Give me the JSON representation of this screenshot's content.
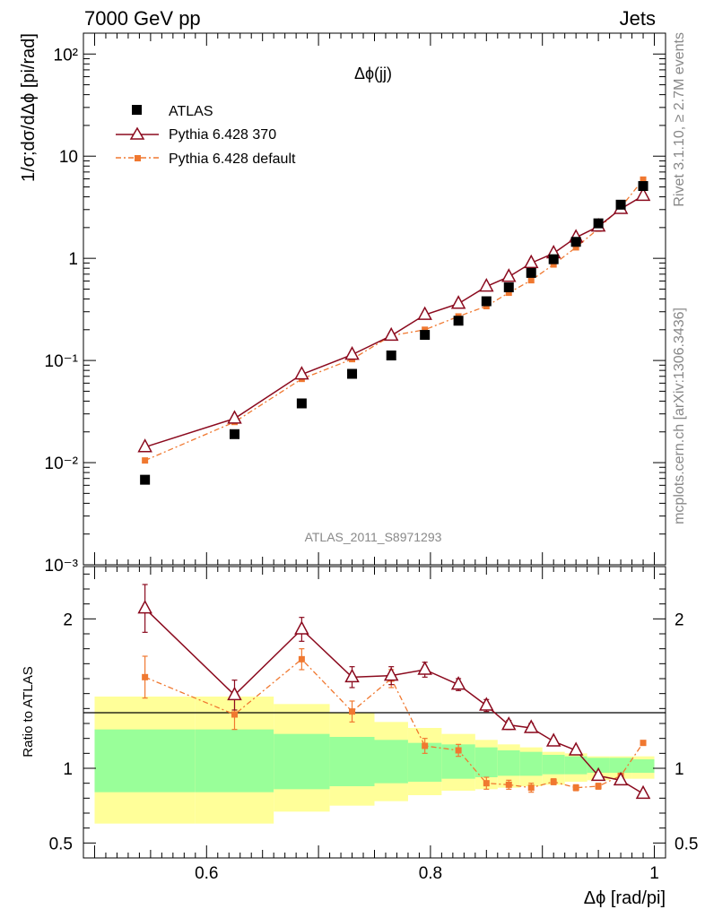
{
  "header": {
    "left": "7000 GeV pp",
    "right": "Jets"
  },
  "side_labels": {
    "rivet": "Rivet 3.1.10, ≥ 2.7M events",
    "mcplots": "mcplots.cern.ch [arXiv:1306.3436]"
  },
  "analysis_id": "ATLAS_2011_S8971293",
  "colors": {
    "atlas": "#000000",
    "pythia370": "#8b0a1e",
    "pythia_default": "#f07830",
    "band_inner": "#99ff99",
    "band_outer": "#ffff99"
  },
  "chart_data": [
    {
      "type": "scatter",
      "panel": "main",
      "title": "Δϕ(jj)",
      "ylabel": "1/σ;dσ/dΔϕ [pi/rad]",
      "xlabel": "",
      "yscale": "log",
      "ylim": [
        0.001,
        160
      ],
      "xlim": [
        0.49,
        1.01
      ],
      "ytick_labels": [
        "10⁻³",
        "10⁻²",
        "10⁻¹",
        "1",
        "10",
        "10²"
      ],
      "legend_position": "top-left",
      "series": [
        {
          "name": "ATLAS",
          "marker": "square",
          "x": [
            0.545,
            0.625,
            0.685,
            0.73,
            0.765,
            0.795,
            0.825,
            0.85,
            0.87,
            0.89,
            0.91,
            0.93,
            0.95,
            0.97,
            0.99
          ],
          "y": [
            0.0068,
            0.019,
            0.038,
            0.074,
            0.112,
            0.178,
            0.245,
            0.38,
            0.52,
            0.72,
            0.98,
            1.45,
            2.2,
            3.35,
            5.1
          ]
        },
        {
          "name": "Pythia 6.428 370",
          "marker": "triangle",
          "x": [
            0.545,
            0.625,
            0.685,
            0.73,
            0.765,
            0.795,
            0.825,
            0.85,
            0.87,
            0.89,
            0.91,
            0.93,
            0.95,
            0.97,
            0.99
          ],
          "y": [
            0.0142,
            0.027,
            0.073,
            0.114,
            0.175,
            0.28,
            0.36,
            0.53,
            0.66,
            0.9,
            1.12,
            1.6,
            2.05,
            3.05,
            4.1
          ]
        },
        {
          "name": "Pythia 6.428 default",
          "marker": "small-square",
          "x": [
            0.545,
            0.625,
            0.685,
            0.73,
            0.765,
            0.795,
            0.825,
            0.85,
            0.87,
            0.89,
            0.91,
            0.93,
            0.95,
            0.97,
            0.99
          ],
          "y": [
            0.0105,
            0.025,
            0.066,
            0.103,
            0.175,
            0.2,
            0.27,
            0.34,
            0.46,
            0.61,
            0.87,
            1.28,
            1.95,
            3.15,
            5.9
          ]
        }
      ]
    },
    {
      "type": "line",
      "panel": "ratio",
      "ylabel": "Ratio to ATLAS",
      "xlabel": "Δϕ [rad/pi]",
      "ylim": [
        0.4,
        2.35
      ],
      "xlim": [
        0.49,
        1.01
      ],
      "xticks": [
        0.6,
        0.8,
        1
      ],
      "xtick_labels": [
        "0.6",
        "0.8",
        "1"
      ],
      "yticks": [
        0.5,
        1,
        2
      ],
      "ytick_labels": [
        "0.5",
        "1",
        "2"
      ],
      "bands": {
        "edges": [
          0.5,
          0.59,
          0.66,
          0.71,
          0.75,
          0.78,
          0.81,
          0.84,
          0.86,
          0.88,
          0.9,
          0.92,
          0.94,
          0.96,
          0.98,
          1.0
        ],
        "inner_low": [
          0.84,
          0.84,
          0.86,
          0.88,
          0.9,
          0.91,
          0.93,
          0.94,
          0.95,
          0.95,
          0.96,
          0.96,
          0.97,
          0.97,
          0.97
        ],
        "inner_high": [
          1.26,
          1.26,
          1.23,
          1.21,
          1.19,
          1.17,
          1.16,
          1.14,
          1.12,
          1.11,
          1.09,
          1.08,
          1.07,
          1.07,
          1.06
        ],
        "outer_low": [
          0.63,
          0.63,
          0.71,
          0.75,
          0.78,
          0.82,
          0.85,
          0.86,
          0.87,
          0.88,
          0.89,
          0.91,
          0.92,
          0.93,
          0.93
        ],
        "outer_high": [
          1.48,
          1.48,
          1.43,
          1.37,
          1.31,
          1.27,
          1.23,
          1.19,
          1.16,
          1.14,
          1.11,
          1.1,
          1.08,
          1.08,
          1.08
        ]
      },
      "series": [
        {
          "name": "Pythia 6.428 370",
          "x": [
            0.545,
            0.625,
            0.685,
            0.73,
            0.765,
            0.795,
            0.825,
            0.85,
            0.87,
            0.89,
            0.91,
            0.93,
            0.95,
            0.97,
            0.99
          ],
          "y": [
            2.07,
            1.49,
            1.93,
            1.61,
            1.62,
            1.66,
            1.56,
            1.42,
            1.29,
            1.27,
            1.18,
            1.12,
            0.95,
            0.92,
            0.83
          ],
          "err": [
            0.16,
            0.1,
            0.08,
            0.07,
            0.06,
            0.05,
            0.04,
            0.04,
            0.03,
            0.03,
            0.02,
            0.02,
            0.02,
            0.01,
            0.01
          ]
        },
        {
          "name": "Pythia 6.428 default",
          "x": [
            0.545,
            0.625,
            0.685,
            0.73,
            0.765,
            0.795,
            0.825,
            0.85,
            0.87,
            0.89,
            0.91,
            0.93,
            0.95,
            0.97,
            0.99
          ],
          "y": [
            1.61,
            1.36,
            1.73,
            1.38,
            1.6,
            1.15,
            1.12,
            0.9,
            0.89,
            0.87,
            0.91,
            0.87,
            0.88,
            0.95,
            1.17
          ],
          "err": [
            0.14,
            0.1,
            0.07,
            0.07,
            0.06,
            0.05,
            0.04,
            0.04,
            0.03,
            0.03,
            0.02,
            0.02,
            0.02,
            0.01,
            0.01
          ]
        }
      ]
    }
  ]
}
